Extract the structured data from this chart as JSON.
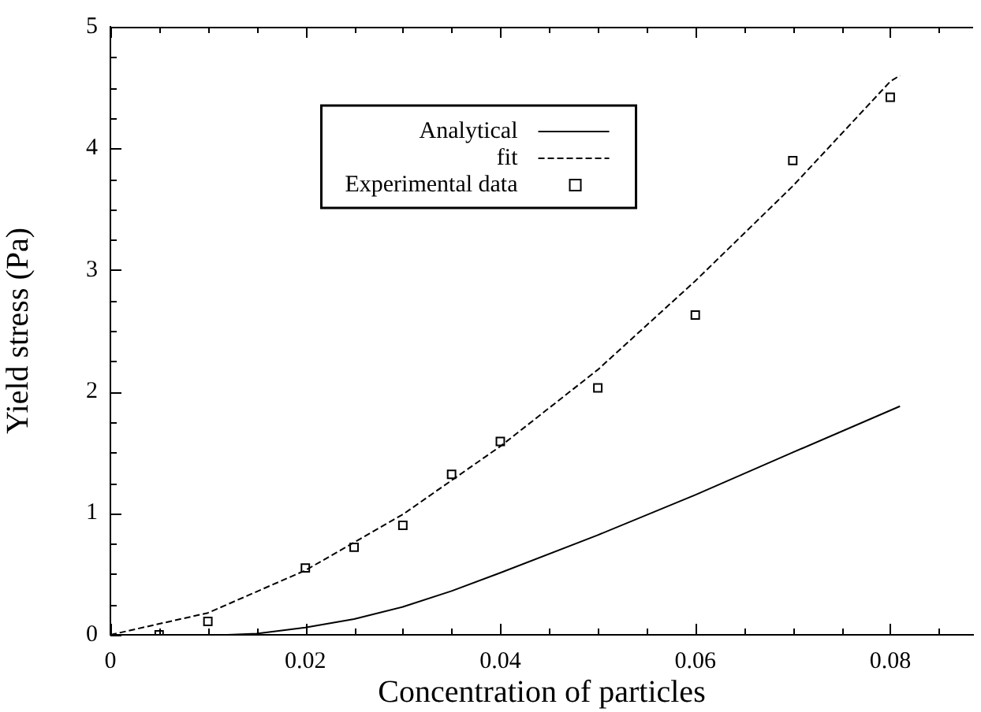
{
  "chart_data": {
    "type": "line",
    "xlabel": "Concentration of particles",
    "ylabel": "Yield stress (Pa)",
    "xlim": [
      0,
      0.0885
    ],
    "ylim": [
      0,
      5
    ],
    "xticks": [
      0,
      {
        "value": 0.005,
        "label": null
      },
      {
        "value": 0.01,
        "label": null
      },
      {
        "value": 0.015,
        "label": null
      },
      0.02,
      {
        "value": 0.025,
        "label": null
      },
      {
        "value": 0.03,
        "label": null
      },
      {
        "value": 0.035,
        "label": null
      },
      0.04,
      {
        "value": 0.045,
        "label": null
      },
      {
        "value": 0.05,
        "label": null
      },
      {
        "value": 0.055,
        "label": null
      },
      0.06,
      {
        "value": 0.065,
        "label": null
      },
      {
        "value": 0.07,
        "label": null
      },
      {
        "value": 0.075,
        "label": null
      },
      0.08,
      {
        "value": 0.085,
        "label": null
      }
    ],
    "yticks": [
      0,
      {
        "value": 0.25,
        "label": null
      },
      {
        "value": 0.5,
        "label": null
      },
      {
        "value": 0.75,
        "label": null
      },
      1,
      {
        "value": 1.25,
        "label": null
      },
      {
        "value": 1.5,
        "label": null
      },
      {
        "value": 1.75,
        "label": null
      },
      2,
      {
        "value": 2.25,
        "label": null
      },
      {
        "value": 2.5,
        "label": null
      },
      {
        "value": 2.75,
        "label": null
      },
      3,
      {
        "value": 3.25,
        "label": null
      },
      {
        "value": 3.5,
        "label": null
      },
      {
        "value": 3.75,
        "label": null
      },
      4,
      {
        "value": 4.25,
        "label": null
      },
      {
        "value": 4.5,
        "label": null
      },
      {
        "value": 4.75,
        "label": null
      },
      5
    ],
    "grid": false,
    "legend": "top",
    "series": [
      {
        "name": "Analytical",
        "type": "line",
        "line_style": "solid",
        "marker": "none",
        "color": "#000000",
        "x": [
          0.012,
          0.015,
          0.02,
          0.025,
          0.03,
          0.035,
          0.04,
          0.05,
          0.06,
          0.07,
          0.081
        ],
        "values": [
          0,
          0.01,
          0.06,
          0.13,
          0.23,
          0.36,
          0.51,
          0.82,
          1.15,
          1.5,
          1.88
        ]
      },
      {
        "name": "fit",
        "type": "line",
        "line_style": "dashed",
        "marker": "none",
        "color": "#000000",
        "x": [
          0,
          0.01,
          0.02,
          0.03,
          0.04,
          0.05,
          0.06,
          0.07,
          0.08,
          0.081
        ],
        "values": [
          0,
          0.18,
          0.53,
          0.99,
          1.55,
          2.18,
          2.91,
          3.69,
          4.55,
          4.6
        ]
      },
      {
        "name": "Experimental data",
        "type": "scatter",
        "marker": "square",
        "color": "#000000",
        "x": [
          0.005,
          0.01,
          0.02,
          0.025,
          0.03,
          0.035,
          0.04,
          0.05,
          0.06,
          0.07,
          0.08
        ],
        "values": [
          0,
          0.11,
          0.55,
          0.72,
          0.9,
          1.32,
          1.59,
          2.03,
          2.63,
          3.9,
          4.42
        ]
      }
    ]
  }
}
